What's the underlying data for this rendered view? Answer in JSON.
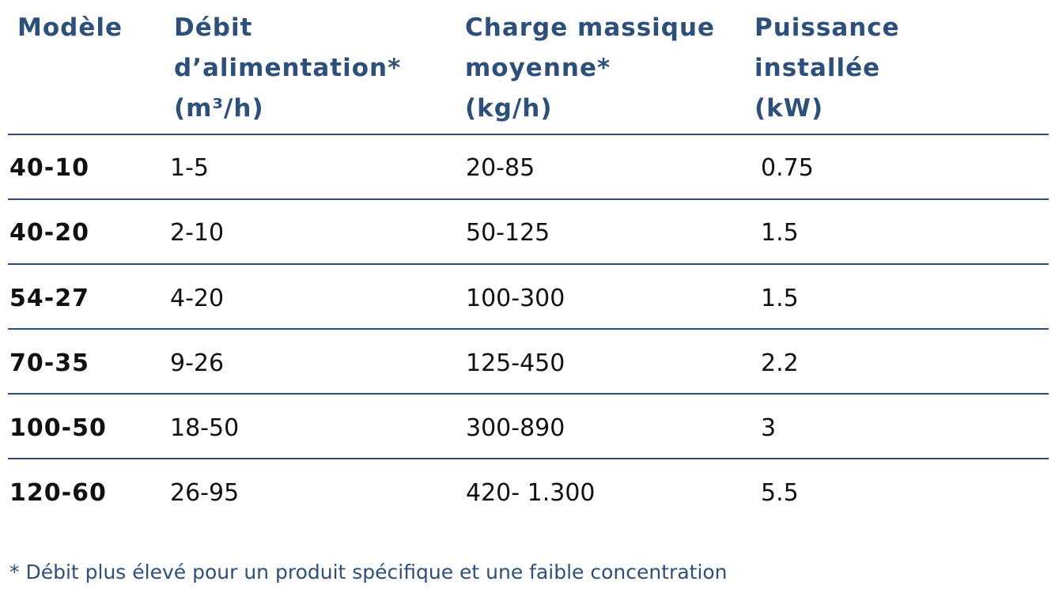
{
  "table": {
    "headers": [
      [
        "Modèle"
      ],
      [
        "Débit",
        "d’alimentation*",
        "(m³/h)"
      ],
      [
        "Charge massique",
        "moyenne*",
        "(kg/h)"
      ],
      [
        "Puissance",
        "installée",
        "(kW)"
      ]
    ],
    "rows": [
      [
        "40-10",
        "1-5",
        "20-85",
        "0.75"
      ],
      [
        "40-20",
        "2-10",
        "50-125",
        "1.5"
      ],
      [
        "54-27",
        "4-20",
        "100-300",
        "1.5"
      ],
      [
        "70-35",
        "9-26",
        "125-450",
        "2.2"
      ],
      [
        "100-50",
        "18-50",
        "300-890",
        "3"
      ],
      [
        "120-60",
        "26-95",
        "420- 1.300",
        "5.5"
      ]
    ]
  },
  "footnote": "* Débit plus élevé pour un produit spécifique et une faible concentration",
  "colors": {
    "header_text": "#2c4f7c",
    "rule": "#2d4f7a",
    "body_text": "#111111"
  }
}
